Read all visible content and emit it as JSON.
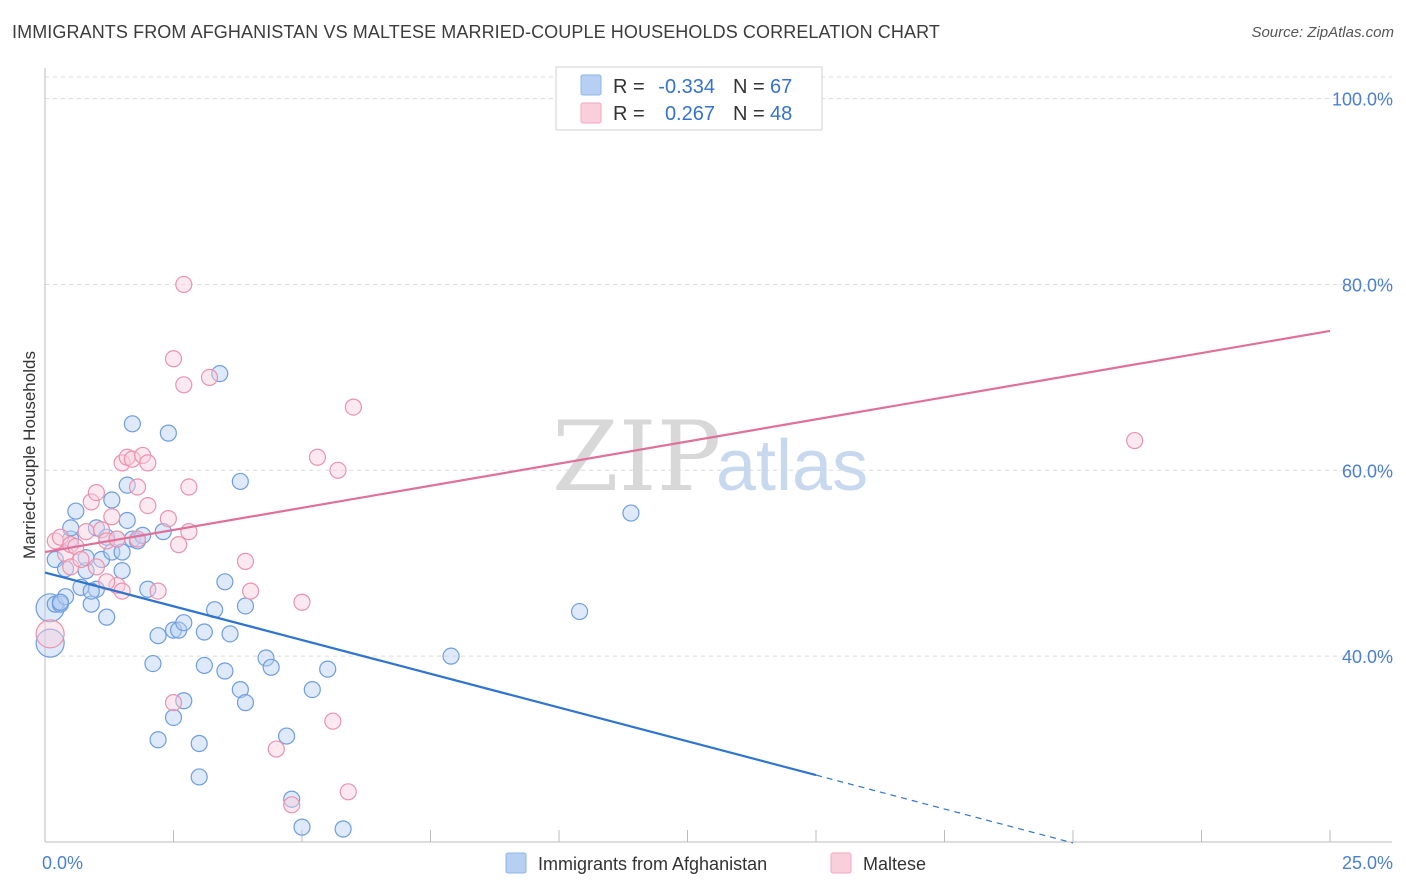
{
  "title": "IMMIGRANTS FROM AFGHANISTAN VS MALTESE MARRIED-COUPLE HOUSEHOLDS CORRELATION CHART",
  "source": "Source: ZipAtlas.com",
  "watermark": {
    "zip": "ZIP",
    "atlas": "atlas"
  },
  "legend_top": [
    {
      "r_label": "R =",
      "r_value": "-0.334",
      "n_label": "N =",
      "n_value": "67"
    },
    {
      "r_label": "R =",
      "r_value": "0.267",
      "n_label": "N =",
      "n_value": "48"
    }
  ],
  "legend_bottom": [
    {
      "label": "Immigrants from Afghanistan"
    },
    {
      "label": "Maltese"
    }
  ],
  "chart_data": {
    "type": "scatter",
    "title": "IMMIGRANTS FROM AFGHANISTAN VS MALTESE MARRIED-COUPLE HOUSEHOLDS CORRELATION CHART",
    "xlabel": "",
    "ylabel": "Married-couple Households",
    "xlim": [
      0,
      25
    ],
    "ylim": [
      20,
      102
    ],
    "x_tick_labels": [
      "0.0%",
      "25.0%"
    ],
    "y_ticks": [
      40,
      60,
      80,
      100
    ],
    "y_tick_labels": [
      "40.0%",
      "60.0%",
      "80.0%",
      "100.0%"
    ],
    "grid": true,
    "legend_position": "top-center",
    "colors": {
      "afghanistan": "#8db4ea",
      "maltese": "#f3a9c0",
      "afghanistan_line": "#2f74d0",
      "maltese_line": "#e0709a"
    },
    "series": [
      {
        "name": "Immigrants from Afghanistan",
        "color": "#8db4ea",
        "trend": {
          "x": [
            0,
            15
          ],
          "y": [
            49.0,
            27.2
          ],
          "dashed_to": [
            20,
            19.9
          ]
        },
        "points": [
          [
            0.1,
            41.4
          ],
          [
            0.1,
            45.2
          ],
          [
            0.2,
            45.6
          ],
          [
            0.2,
            50.4
          ],
          [
            0.3,
            45.6
          ],
          [
            0.4,
            49.4
          ],
          [
            0.4,
            46.4
          ],
          [
            0.5,
            52.6
          ],
          [
            0.5,
            53.8
          ],
          [
            0.6,
            55.6
          ],
          [
            0.7,
            47.4
          ],
          [
            0.8,
            49.2
          ],
          [
            0.8,
            50.6
          ],
          [
            0.9,
            45.6
          ],
          [
            1.0,
            53.8
          ],
          [
            1.0,
            47.2
          ],
          [
            1.1,
            50.4
          ],
          [
            1.2,
            52.8
          ],
          [
            1.2,
            44.2
          ],
          [
            1.3,
            51.2
          ],
          [
            1.3,
            56.8
          ],
          [
            1.4,
            52.6
          ],
          [
            1.5,
            49.2
          ],
          [
            1.5,
            51.2
          ],
          [
            1.6,
            54.6
          ],
          [
            1.6,
            58.4
          ],
          [
            1.7,
            65.0
          ],
          [
            1.7,
            52.6
          ],
          [
            1.8,
            52.4
          ],
          [
            1.9,
            53.0
          ],
          [
            2.0,
            47.2
          ],
          [
            2.1,
            39.2
          ],
          [
            2.2,
            42.2
          ],
          [
            2.2,
            31.0
          ],
          [
            2.3,
            53.4
          ],
          [
            2.4,
            64.0
          ],
          [
            2.5,
            42.8
          ],
          [
            2.5,
            33.4
          ],
          [
            2.6,
            42.8
          ],
          [
            2.7,
            43.6
          ],
          [
            2.7,
            35.2
          ],
          [
            3.0,
            27.0
          ],
          [
            3.0,
            30.6
          ],
          [
            3.1,
            39.0
          ],
          [
            3.1,
            42.6
          ],
          [
            3.3,
            45.0
          ],
          [
            3.4,
            70.4
          ],
          [
            3.5,
            38.4
          ],
          [
            3.5,
            48.0
          ],
          [
            3.6,
            42.4
          ],
          [
            3.8,
            36.4
          ],
          [
            3.8,
            58.8
          ],
          [
            3.9,
            35.0
          ],
          [
            3.9,
            45.4
          ],
          [
            4.3,
            39.8
          ],
          [
            4.4,
            38.8
          ],
          [
            4.7,
            31.4
          ],
          [
            4.8,
            24.6
          ],
          [
            5.0,
            21.6
          ],
          [
            5.2,
            36.4
          ],
          [
            5.5,
            38.6
          ],
          [
            5.8,
            21.4
          ],
          [
            7.9,
            40.0
          ],
          [
            10.4,
            44.8
          ],
          [
            11.4,
            55.4
          ],
          [
            0.3,
            45.8
          ],
          [
            0.9,
            47.0
          ]
        ]
      },
      {
        "name": "Maltese",
        "color": "#f3a9c0",
        "trend": {
          "x": [
            0,
            25
          ],
          "y": [
            51.2,
            75.0
          ]
        },
        "points": [
          [
            0.1,
            42.4
          ],
          [
            0.2,
            52.4
          ],
          [
            0.3,
            52.8
          ],
          [
            0.4,
            51.0
          ],
          [
            0.5,
            49.6
          ],
          [
            0.5,
            52.0
          ],
          [
            0.6,
            51.8
          ],
          [
            0.7,
            50.4
          ],
          [
            0.8,
            53.4
          ],
          [
            0.9,
            56.6
          ],
          [
            1.0,
            57.6
          ],
          [
            1.0,
            49.6
          ],
          [
            1.1,
            53.6
          ],
          [
            1.2,
            52.4
          ],
          [
            1.3,
            55.0
          ],
          [
            1.4,
            52.6
          ],
          [
            1.4,
            47.6
          ],
          [
            1.5,
            47.0
          ],
          [
            1.5,
            60.8
          ],
          [
            1.6,
            61.4
          ],
          [
            1.7,
            61.2
          ],
          [
            1.8,
            58.2
          ],
          [
            1.8,
            52.6
          ],
          [
            1.9,
            61.6
          ],
          [
            2.0,
            60.8
          ],
          [
            2.0,
            56.2
          ],
          [
            2.2,
            47.0
          ],
          [
            2.4,
            54.8
          ],
          [
            2.5,
            35.0
          ],
          [
            2.5,
            72.0
          ],
          [
            2.6,
            52.0
          ],
          [
            2.7,
            69.2
          ],
          [
            2.7,
            80.0
          ],
          [
            2.8,
            53.4
          ],
          [
            2.8,
            58.2
          ],
          [
            3.2,
            70.0
          ],
          [
            3.9,
            50.2
          ],
          [
            4.0,
            47.0
          ],
          [
            4.5,
            30.0
          ],
          [
            4.8,
            24.0
          ],
          [
            5.0,
            45.8
          ],
          [
            5.3,
            61.4
          ],
          [
            5.6,
            33.0
          ],
          [
            5.7,
            60.0
          ],
          [
            5.9,
            25.4
          ],
          [
            6.0,
            66.8
          ],
          [
            21.2,
            63.2
          ],
          [
            1.2,
            48.0
          ]
        ]
      }
    ]
  }
}
